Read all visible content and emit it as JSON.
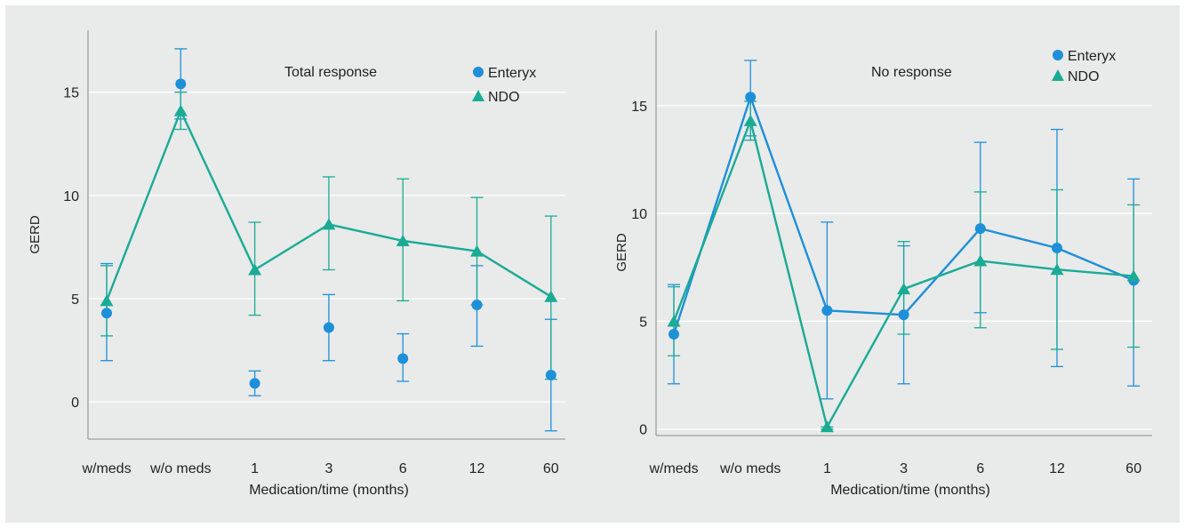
{
  "chart_data": [
    {
      "type": "line",
      "title": "Total response",
      "xlabel": "Medication/time (months)",
      "ylabel": "GERD",
      "categories": [
        "w/meds",
        "w/o meds",
        "1",
        "3",
        "6",
        "12",
        "60"
      ],
      "ylim": [
        -1.8,
        18
      ],
      "yticks": [
        0,
        5,
        10,
        15
      ],
      "grid": true,
      "legend": "top-right",
      "series": [
        {
          "name": "Enteryx",
          "marker": "circle",
          "connected": false,
          "color": "#1e90d8",
          "values": [
            4.3,
            15.4,
            0.9,
            3.6,
            2.1,
            4.7,
            1.3
          ],
          "err_low": [
            2.0,
            13.7,
            0.3,
            2.0,
            1.0,
            2.7,
            -1.4
          ],
          "err_high": [
            6.7,
            17.1,
            1.5,
            5.2,
            3.3,
            6.6,
            4.0
          ]
        },
        {
          "name": "NDO",
          "marker": "triangle",
          "connected": true,
          "color": "#1aab95",
          "values": [
            4.9,
            14.1,
            6.4,
            8.6,
            7.8,
            7.3,
            5.1
          ],
          "err_low": [
            3.2,
            13.2,
            4.2,
            6.4,
            4.9,
            4.7,
            1.1
          ],
          "err_high": [
            6.6,
            15.0,
            8.7,
            10.9,
            10.8,
            9.9,
            9.0
          ]
        }
      ]
    },
    {
      "type": "line",
      "title": "No response",
      "xlabel": "Medication/time (months)",
      "ylabel": "GERD",
      "categories": [
        "w/meds",
        "w/o meds",
        "1",
        "3",
        "6",
        "12",
        "60"
      ],
      "ylim": [
        -0.3,
        18.5
      ],
      "yticks": [
        0,
        5,
        10,
        15
      ],
      "grid": true,
      "legend": "top-right",
      "series": [
        {
          "name": "Enteryx",
          "marker": "circle",
          "connected": true,
          "color": "#1e90d8",
          "values": [
            4.4,
            15.4,
            5.5,
            5.3,
            9.3,
            8.4,
            6.9
          ],
          "err_low": [
            2.1,
            13.6,
            1.4,
            2.1,
            5.4,
            2.9,
            2.0
          ],
          "err_high": [
            6.7,
            17.1,
            9.6,
            8.5,
            13.3,
            13.9,
            11.6
          ]
        },
        {
          "name": "NDO",
          "marker": "triangle",
          "connected": true,
          "color": "#1aab95",
          "values": [
            5.0,
            14.3,
            0.1,
            6.5,
            7.8,
            7.4,
            7.1
          ],
          "err_low": [
            3.4,
            13.4,
            0.0,
            4.4,
            4.7,
            3.7,
            3.8
          ],
          "err_high": [
            6.6,
            15.2,
            0.1,
            8.7,
            11.0,
            11.1,
            10.4
          ]
        }
      ]
    }
  ]
}
